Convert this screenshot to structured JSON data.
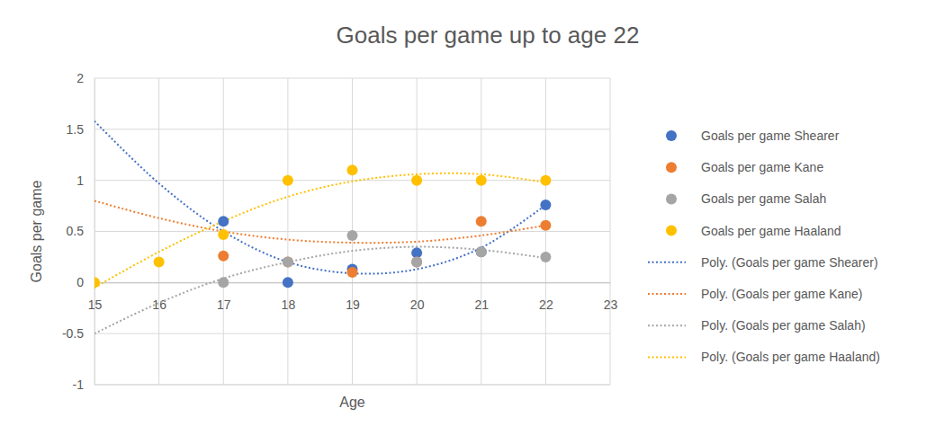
{
  "chart_data": {
    "type": "scatter",
    "title": "Goals per game up to age 22",
    "x_label": "Age",
    "y_label": "Goals per game",
    "x": [
      15,
      16,
      17,
      18,
      19,
      20,
      21,
      22
    ],
    "xlim": [
      15,
      23
    ],
    "xticks": [
      15,
      16,
      17,
      18,
      19,
      20,
      21,
      22,
      23
    ],
    "ylim": [
      -1,
      2
    ],
    "yticks": [
      -1,
      -0.5,
      0,
      0.5,
      1,
      1.5,
      2
    ],
    "grid": true,
    "legend": "right",
    "series": [
      {
        "name": "Goals per game Shearer",
        "type": "scatter",
        "marker": "circle",
        "color": "#4472c4",
        "values": [
          null,
          null,
          0.6,
          0,
          0.13,
          0.29,
          0.3,
          0.76
        ]
      },
      {
        "name": "Goals per game Kane",
        "type": "scatter",
        "marker": "circle",
        "color": "#ed7d31",
        "values": [
          null,
          null,
          0.26,
          0.2,
          0.1,
          0.2,
          0.6,
          0.56
        ]
      },
      {
        "name": "Goals per game Salah",
        "type": "scatter",
        "marker": "circle",
        "color": "#a5a5a5",
        "values": [
          null,
          null,
          0,
          0.2,
          0.46,
          0.2,
          0.3,
          0.25
        ]
      },
      {
        "name": "Goals per game Haaland",
        "type": "scatter",
        "marker": "circle",
        "color": "#ffc000",
        "values": [
          0,
          0.2,
          0.47,
          1.0,
          1.1,
          1.0,
          1.0,
          1.0
        ]
      },
      {
        "name": "Poly. (Goals per game Shearer)",
        "type": "line",
        "line_style": "dotted",
        "color": "#4472c4",
        "values": [
          1.58,
          0.97,
          0.5,
          0.2,
          0.09,
          0.13,
          0.34,
          0.76
        ]
      },
      {
        "name": "Poly. (Goals per game Kane)",
        "type": "line",
        "line_style": "dotted",
        "color": "#ed7d31",
        "values": [
          0.8,
          0.63,
          0.5,
          0.42,
          0.39,
          0.4,
          0.46,
          0.56
        ]
      },
      {
        "name": "Poly. (Goals per game Salah)",
        "type": "line",
        "line_style": "dotted",
        "color": "#a5a5a5",
        "values": [
          -0.5,
          -0.2,
          0.04,
          0.2,
          0.31,
          0.35,
          0.32,
          0.24
        ]
      },
      {
        "name": "Poly. (Goals per game Haaland)",
        "type": "line",
        "line_style": "dotted",
        "color": "#ffc000",
        "values": [
          -0.05,
          0.3,
          0.6,
          0.84,
          0.99,
          1.06,
          1.06,
          0.98
        ]
      }
    ]
  }
}
